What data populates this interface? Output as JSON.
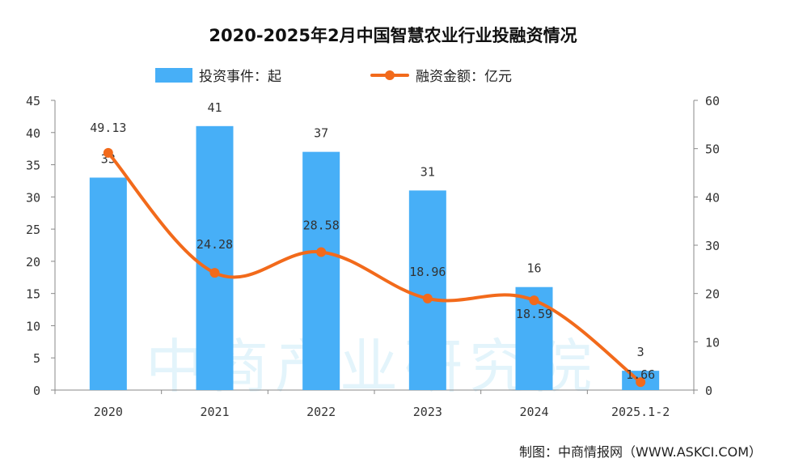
{
  "chart_data": {
    "type": "bar+line",
    "title": "2020-2025年2月中国智慧农业行业投融资情况",
    "categories": [
      "2020",
      "2021",
      "2022",
      "2023",
      "2024",
      "2025.1-2"
    ],
    "series": [
      {
        "name": "投资事件：起",
        "type": "bar",
        "axis": "left",
        "values": [
          33,
          41,
          37,
          31,
          16,
          3
        ],
        "color": "#47AFF7"
      },
      {
        "name": "融资金额：亿元",
        "type": "line",
        "axis": "right",
        "values": [
          49.13,
          24.28,
          28.58,
          18.96,
          18.59,
          1.66
        ],
        "labels": [
          "49.13",
          "24.28",
          "28.58",
          "18.96",
          "18.59",
          "1.66"
        ],
        "color": "#F26A1B"
      }
    ],
    "ylim_left": [
      0,
      45
    ],
    "yticks_left": [
      0,
      5,
      10,
      15,
      20,
      25,
      30,
      35,
      40,
      45
    ],
    "ylim_right": [
      0,
      60
    ],
    "yticks_right": [
      0,
      10,
      20,
      30,
      40,
      50,
      60
    ],
    "grid": false,
    "legend_position": "top"
  },
  "footer": "制图：中商情报网（WWW.ASKCI.COM）",
  "watermark": "中商产业研究院"
}
